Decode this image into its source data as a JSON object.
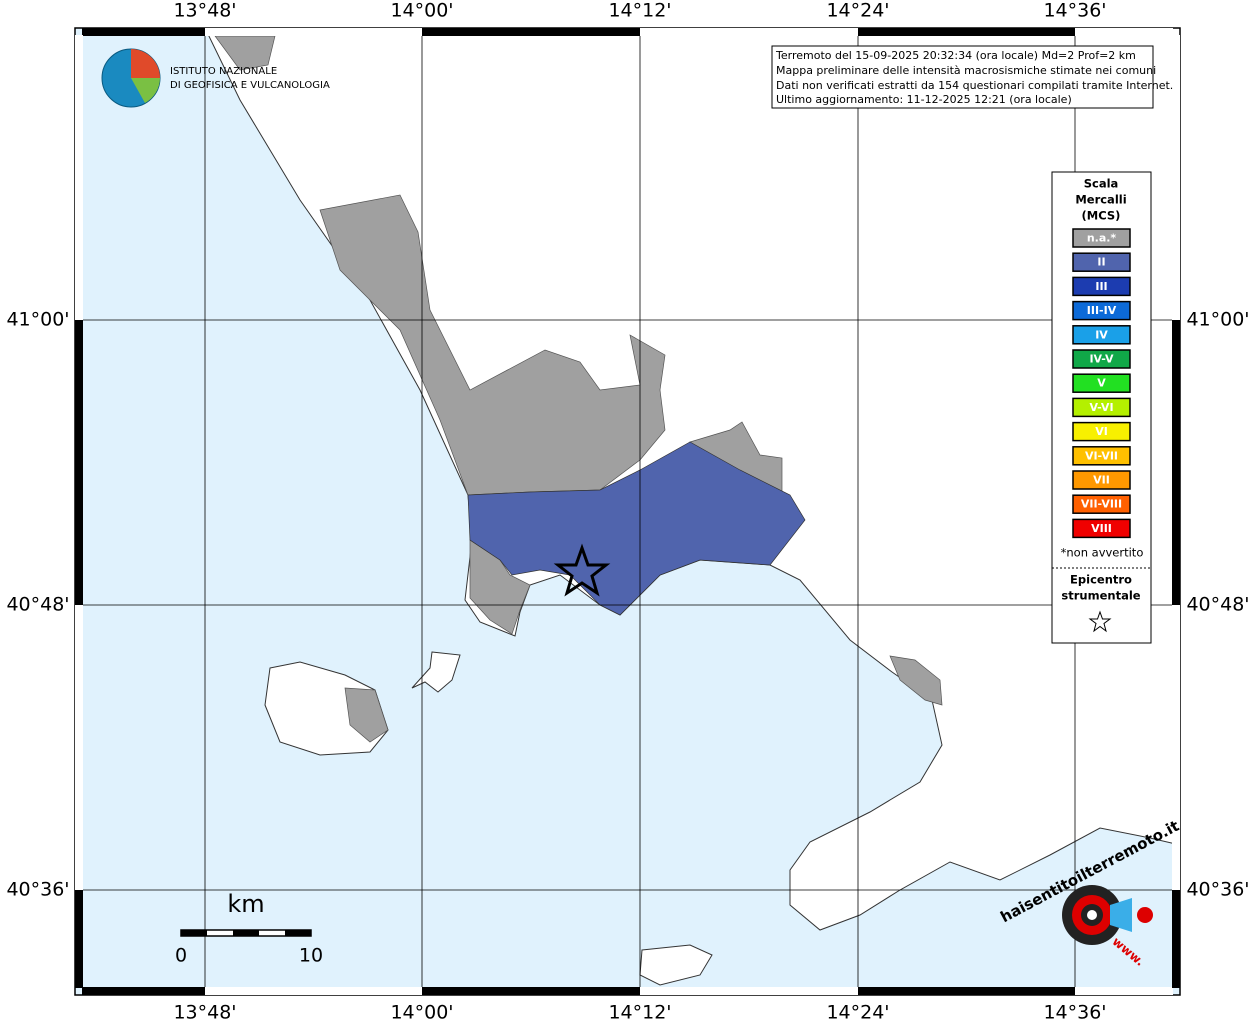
{
  "info_box": [
    "Terremoto del 15-09-2025 20:32:34 (ora locale) Md=2 Prof=2 km",
    "Mappa preliminare delle intensità macrosismiche stimate nei comuni",
    "Dati non verificati estratti da 154 questionari compilati tramite Internet.",
    "Ultimo aggiornamento: 11-12-2025 12:21 (ora locale)"
  ],
  "institute": [
    "ISTITUTO NAZIONALE",
    "DI GEOFISICA E VULCANOLOGIA"
  ],
  "lon_labels": [
    "13°48'",
    "14°00'",
    "14°12'",
    "14°24'",
    "14°36'"
  ],
  "lat_labels": [
    "41°00'",
    "40°48'",
    "40°36'"
  ],
  "legend": {
    "title": [
      "Scala",
      "Mercalli",
      "(MCS)"
    ],
    "items": [
      {
        "label": "n.a.*",
        "color": "#a0a0a0"
      },
      {
        "label": "II",
        "color": "#5064ad"
      },
      {
        "label": "III",
        "color": "#1c3cb0"
      },
      {
        "label": "III-IV",
        "color": "#0c6ad8"
      },
      {
        "label": "IV",
        "color": "#1aa0e8"
      },
      {
        "label": "IV-V",
        "color": "#10a848"
      },
      {
        "label": "V",
        "color": "#22e022"
      },
      {
        "label": "V-VI",
        "color": "#b4f000"
      },
      {
        "label": "VI",
        "color": "#f8f000"
      },
      {
        "label": "VI-VII",
        "color": "#ffc000"
      },
      {
        "label": "VII",
        "color": "#ff9800"
      },
      {
        "label": "VII-VIII",
        "color": "#ff6000"
      },
      {
        "label": "VIII",
        "color": "#f00000"
      }
    ],
    "note": "*non avvertito",
    "epicenter": [
      "Epicentro",
      "strumentale"
    ]
  },
  "scale_bar": {
    "unit": "km",
    "ticks": [
      "0",
      "10"
    ]
  },
  "site_logo": [
    "haisentitoilterremoto.it",
    "www."
  ]
}
